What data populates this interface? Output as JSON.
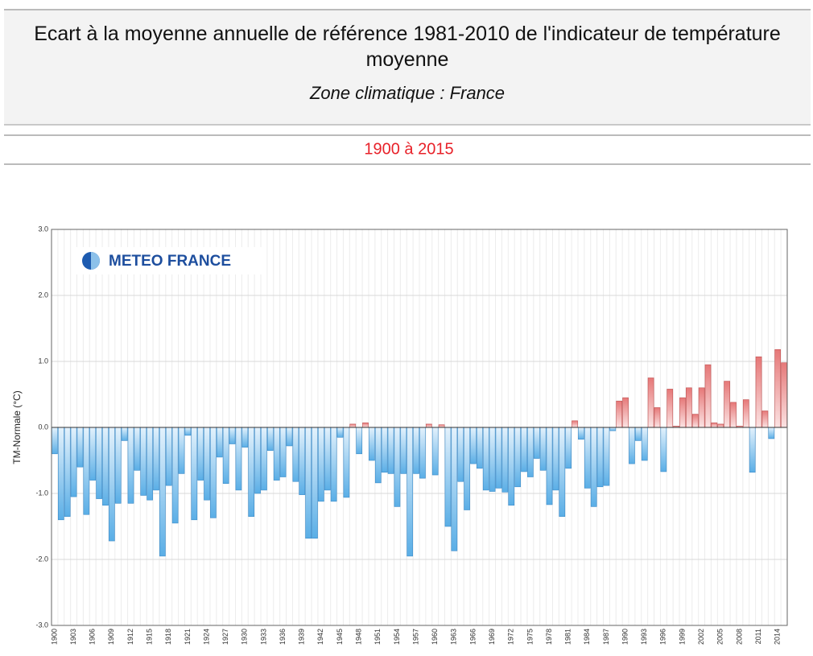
{
  "chart_data": {
    "type": "bar",
    "title": "Ecart à la moyenne annuelle de référence 1981-2010 de l'indicateur de température moyenne",
    "subtitle": "Zone climatique : France",
    "period": "1900 à 2015",
    "logo": "METEO FRANCE",
    "ylabel": "TM-Normale (°C)",
    "categories": [
      "1900",
      null,
      null,
      "1903",
      null,
      null,
      "1906",
      null,
      null,
      "1909",
      null,
      null,
      "1912",
      null,
      null,
      "1915",
      null,
      null,
      "1918",
      null,
      null,
      "1921",
      null,
      null,
      "1924",
      null,
      null,
      "1927",
      null,
      null,
      "1930",
      null,
      null,
      "1933",
      null,
      null,
      "1936",
      null,
      null,
      "1939",
      null,
      null,
      "1942",
      null,
      null,
      "1945",
      null,
      null,
      "1948",
      null,
      null,
      "1951",
      null,
      null,
      "1954",
      null,
      null,
      "1957",
      null,
      null,
      "1960",
      null,
      null,
      "1963",
      null,
      null,
      "1966",
      null,
      null,
      "1969",
      null,
      null,
      "1972",
      null,
      null,
      "1975",
      null,
      null,
      "1978",
      null,
      null,
      "1981",
      null,
      null,
      "1984",
      null,
      null,
      "1987",
      null,
      null,
      "1990",
      null,
      null,
      "1993",
      null,
      null,
      "1996",
      null,
      null,
      "1999",
      null,
      null,
      "2002",
      null,
      null,
      "2005",
      null,
      null,
      "2008",
      null,
      null,
      "2011",
      null,
      null,
      "2014",
      null
    ],
    "values": [
      -0.4,
      -1.4,
      -1.35,
      -1.05,
      -0.6,
      -1.32,
      -0.8,
      -1.08,
      -1.18,
      -1.72,
      -1.15,
      -0.2,
      -1.15,
      -0.65,
      -1.03,
      -1.1,
      -0.95,
      -1.95,
      -0.88,
      -1.45,
      -0.7,
      -0.12,
      -1.4,
      -0.8,
      -1.1,
      -1.37,
      -0.45,
      -0.85,
      -0.25,
      -0.95,
      -0.3,
      -1.35,
      -1.0,
      -0.95,
      -0.35,
      -0.8,
      -0.75,
      -0.28,
      -0.82,
      -1.02,
      -1.68,
      -1.68,
      -1.12,
      -0.95,
      -1.12,
      -0.15,
      -1.06,
      0.05,
      -0.4,
      0.07,
      -0.5,
      -0.84,
      -0.68,
      -0.7,
      -1.2,
      -0.7,
      -1.95,
      -0.7,
      -0.77,
      0.05,
      -0.72,
      0.04,
      -1.5,
      -1.87,
      -0.82,
      -1.25,
      -0.55,
      -0.62,
      -0.95,
      -0.97,
      -0.92,
      -0.98,
      -1.18,
      -0.9,
      -0.67,
      -0.75,
      -0.47,
      -0.65,
      -1.17,
      -0.95,
      -1.35,
      -0.62,
      0.1,
      -0.18,
      -0.92,
      -1.2,
      -0.9,
      -0.88,
      -0.05,
      0.4,
      0.45,
      -0.55,
      -0.2,
      -0.5,
      0.75,
      0.3,
      -0.67,
      0.58,
      0.02,
      0.45,
      0.6,
      0.2,
      0.6,
      0.95,
      0.07,
      0.05,
      0.7,
      0.38,
      0.02,
      0.42,
      -0.68,
      1.07,
      0.25,
      -0.17,
      1.18,
      0.98
    ],
    "negative_color": "#5aaee6",
    "positive_color": "#e67878",
    "ylim": [
      -3,
      3
    ],
    "yticks": [
      {
        "value": -3,
        "label": "-3.0"
      },
      {
        "value": -2,
        "label": "-2.0"
      },
      {
        "value": -1,
        "label": "-1.0"
      },
      {
        "value": 0,
        "label": "0.0"
      },
      {
        "value": 1,
        "label": "1.0"
      },
      {
        "value": 2,
        "label": "2.0"
      },
      {
        "value": 3,
        "label": "3.0"
      }
    ],
    "grid": true
  }
}
